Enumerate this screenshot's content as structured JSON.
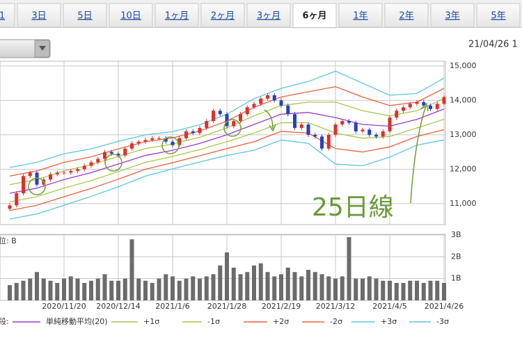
{
  "tabs": [
    {
      "label": "1",
      "selected": false
    },
    {
      "label": "3日",
      "selected": false
    },
    {
      "label": "5日",
      "selected": false
    },
    {
      "label": "10日",
      "selected": false
    },
    {
      "label": "1ヶ月",
      "selected": false
    },
    {
      "label": "2ヶ月",
      "selected": false
    },
    {
      "label": "3ヶ月",
      "selected": false
    },
    {
      "label": "6ヶ月",
      "selected": true
    },
    {
      "label": "1年",
      "selected": false
    },
    {
      "label": "2年",
      "selected": false
    },
    {
      "label": "3年",
      "selected": false
    },
    {
      "label": "5年",
      "selected": false
    }
  ],
  "date_label": "21/04/26 1",
  "chart_data": [
    {
      "type": "candlestick",
      "up_color": "#e0302a",
      "down_color": "#2a3fbf",
      "grid": true,
      "ylim": [
        10390,
        15140
      ],
      "yticks": [
        {
          "value": 11000,
          "label": "11,000"
        },
        {
          "value": 12000,
          "label": "12,000"
        },
        {
          "value": 13000,
          "label": "13,000"
        },
        {
          "value": 14000,
          "label": "14,000"
        },
        {
          "value": 15000,
          "label": "15,000"
        }
      ],
      "open": [
        10850,
        10950,
        11300,
        11800,
        11900,
        11550,
        11700,
        11850,
        11900,
        11900,
        11950,
        12000,
        12100,
        12200,
        12300,
        12500,
        12450,
        12400,
        12600,
        12750,
        12800,
        12850,
        12900,
        12900,
        12800,
        12700,
        12900,
        13100,
        13050,
        13200,
        13400,
        13700,
        13600,
        13250,
        13400,
        13600,
        13800,
        13900,
        14050,
        14150,
        14000,
        13850,
        13600,
        13200,
        13300,
        13000,
        12950,
        12600,
        13000,
        13300,
        13400,
        13350,
        13100,
        13150,
        13000,
        12950,
        13100,
        13500,
        13700,
        13800,
        13900,
        13950,
        13850,
        13750,
        13900
      ],
      "high": [
        11010,
        11360,
        11860,
        11960,
        11960,
        11760,
        11910,
        11960,
        11960,
        12010,
        12060,
        12160,
        12260,
        12360,
        12560,
        12560,
        12510,
        12660,
        12810,
        12860,
        12910,
        12960,
        12960,
        12960,
        12860,
        12960,
        13160,
        13160,
        13260,
        13460,
        13760,
        13760,
        13660,
        13460,
        13660,
        13860,
        13960,
        14110,
        14210,
        14210,
        14060,
        13910,
        13660,
        13360,
        13360,
        13060,
        13010,
        13060,
        13360,
        13460,
        13460,
        13410,
        13210,
        13210,
        13060,
        13160,
        13560,
        13760,
        13860,
        13960,
        14010,
        14010,
        13910,
        13960,
        14160
      ],
      "low": [
        10790,
        10890,
        11240,
        11740,
        11490,
        11490,
        11640,
        11790,
        11840,
        11840,
        11890,
        11940,
        12040,
        12140,
        12240,
        12390,
        12340,
        12340,
        12540,
        12690,
        12740,
        12790,
        12840,
        12740,
        12640,
        12640,
        12840,
        12990,
        12990,
        13140,
        13340,
        13540,
        13190,
        13190,
        13340,
        13540,
        13740,
        13840,
        13990,
        13940,
        13790,
        13540,
        13140,
        13140,
        12940,
        12890,
        12540,
        12540,
        12940,
        13240,
        13290,
        13040,
        13040,
        12940,
        12890,
        12890,
        13040,
        13440,
        13640,
        13740,
        13840,
        13790,
        13690,
        13690,
        13840
      ],
      "close": [
        10950,
        11300,
        11800,
        11900,
        11550,
        11700,
        11850,
        11900,
        11900,
        11950,
        12000,
        12100,
        12200,
        12300,
        12500,
        12450,
        12400,
        12600,
        12750,
        12800,
        12850,
        12900,
        12900,
        12800,
        12700,
        12900,
        13100,
        13050,
        13200,
        13400,
        13700,
        13600,
        13250,
        13400,
        13600,
        13800,
        13900,
        14050,
        14150,
        14000,
        13850,
        13600,
        13200,
        13300,
        13000,
        12950,
        12600,
        13000,
        13300,
        13400,
        13350,
        13100,
        13150,
        13000,
        12950,
        13100,
        13500,
        13700,
        13800,
        13900,
        13950,
        13850,
        13750,
        13900,
        14100
      ],
      "series_x": [
        0,
        4,
        8,
        12,
        16,
        20,
        24,
        28,
        32,
        36,
        40,
        44,
        48,
        52,
        56,
        60,
        64
      ],
      "series": [
        {
          "name": "単純移動平均(20)",
          "color": "#9b3cc8",
          "values": [
            11300,
            11450,
            11700,
            11900,
            12150,
            12400,
            12550,
            12750,
            13000,
            13300,
            13600,
            13650,
            13500,
            13300,
            13250,
            13450,
            13750
          ]
        },
        {
          "name": "+1σ",
          "color": "#a9c84c",
          "values": [
            11550,
            11700,
            11950,
            12130,
            12370,
            12600,
            12730,
            12930,
            13200,
            13550,
            13850,
            13950,
            13950,
            13700,
            13550,
            13700,
            14050
          ]
        },
        {
          "name": "-1σ",
          "color": "#a9c84c",
          "values": [
            11050,
            11200,
            11450,
            11670,
            11930,
            12200,
            12370,
            12570,
            12800,
            13050,
            13350,
            13350,
            13050,
            12900,
            12950,
            13200,
            13450
          ]
        },
        {
          "name": "+2σ",
          "color": "#e8613c",
          "values": [
            11800,
            11950,
            12200,
            12360,
            12590,
            12800,
            12910,
            13110,
            13400,
            13800,
            14100,
            14250,
            14400,
            14100,
            13850,
            13950,
            14350
          ]
        },
        {
          "name": "-2σ",
          "color": "#e8613c",
          "values": [
            10800,
            10950,
            11200,
            11440,
            11710,
            12000,
            12190,
            12390,
            12600,
            12800,
            13100,
            13050,
            12600,
            12500,
            12650,
            12950,
            13150
          ]
        },
        {
          "name": "+3σ",
          "color": "#5cc6de",
          "values": [
            12050,
            12200,
            12450,
            12590,
            12810,
            13000,
            13090,
            13290,
            13600,
            14050,
            14350,
            14550,
            14850,
            14500,
            14150,
            14200,
            14650
          ]
        },
        {
          "name": "-3σ",
          "color": "#5cc6de",
          "values": [
            10550,
            10700,
            10950,
            11210,
            11490,
            11800,
            12010,
            12210,
            12400,
            12550,
            12850,
            12750,
            12150,
            12100,
            12350,
            12700,
            12850
          ]
        }
      ],
      "legend_prefix": "段:",
      "annotation": "25日線"
    },
    {
      "type": "bar",
      "color": "#6b6b6b",
      "unit_label": "位: B",
      "grid": true,
      "ylim": [
        0,
        3.03
      ],
      "yticks": [
        {
          "value": 1,
          "label": "1B"
        },
        {
          "value": 2,
          "label": "2B"
        },
        {
          "value": 3,
          "label": "3B"
        }
      ],
      "categories": [
        null,
        null,
        null,
        null,
        null,
        null,
        null,
        null,
        "2020/11/20",
        null,
        null,
        null,
        null,
        null,
        null,
        null,
        "2020/12/14",
        null,
        null,
        null,
        null,
        null,
        null,
        null,
        "2021/1/6",
        null,
        null,
        null,
        null,
        null,
        null,
        null,
        "2021/1/28",
        null,
        null,
        null,
        null,
        null,
        null,
        null,
        "2021/2/19",
        null,
        null,
        null,
        null,
        null,
        null,
        null,
        "2021/3/12",
        null,
        null,
        null,
        null,
        null,
        null,
        null,
        "2021/4/5",
        null,
        null,
        null,
        null,
        null,
        null,
        null,
        "2021/4/26"
      ],
      "values": [
        0.7,
        0.8,
        0.9,
        1.0,
        1.3,
        1.0,
        0.9,
        0.8,
        1.0,
        1.1,
        1.0,
        0.8,
        0.9,
        1.0,
        1.2,
        0.9,
        0.9,
        1.0,
        2.8,
        1.0,
        0.9,
        0.8,
        1.0,
        1.2,
        1.1,
        0.9,
        1.0,
        1.1,
        1.0,
        1.1,
        1.2,
        1.6,
        2.2,
        1.5,
        1.2,
        1.3,
        1.6,
        1.7,
        1.3,
        1.1,
        1.2,
        1.5,
        1.3,
        1.1,
        1.4,
        1.3,
        1.2,
        1.1,
        1.0,
        1.1,
        2.9,
        1.0,
        1.0,
        1.1,
        1.0,
        0.9,
        0.9,
        0.8,
        0.8,
        0.9,
        0.9,
        0.8,
        0.9,
        0.9,
        0.8
      ]
    }
  ]
}
